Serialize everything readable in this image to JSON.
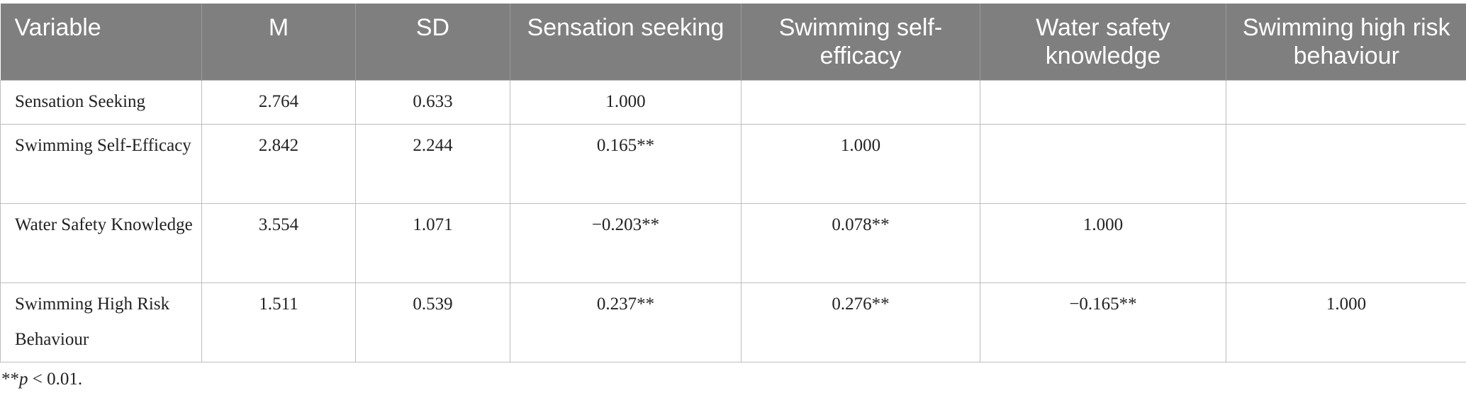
{
  "table": {
    "headers": [
      "Variable",
      "M",
      "SD",
      "Sensation seeking",
      "Swimming self-efficacy",
      "Water safety knowledge",
      "Swimming high risk behaviour"
    ],
    "rows": [
      [
        "Sensation Seeking",
        "2.764",
        "0.633",
        "1.000"
      ],
      [
        "Swimming Self-Efficacy",
        "2.842",
        "2.244",
        "0.165**",
        "1.000"
      ],
      [
        "Water Safety Knowledge",
        "3.554",
        "1.071",
        "−0.203**",
        "0.078**",
        "1.000"
      ],
      [
        "Swimming High Risk Behaviour",
        "1.511",
        "0.539",
        "0.237**",
        "0.276**",
        "−0.165**",
        "1.000"
      ]
    ]
  },
  "footnote": {
    "prefix": "**",
    "italic": "p",
    "rest": " < 0.01."
  }
}
